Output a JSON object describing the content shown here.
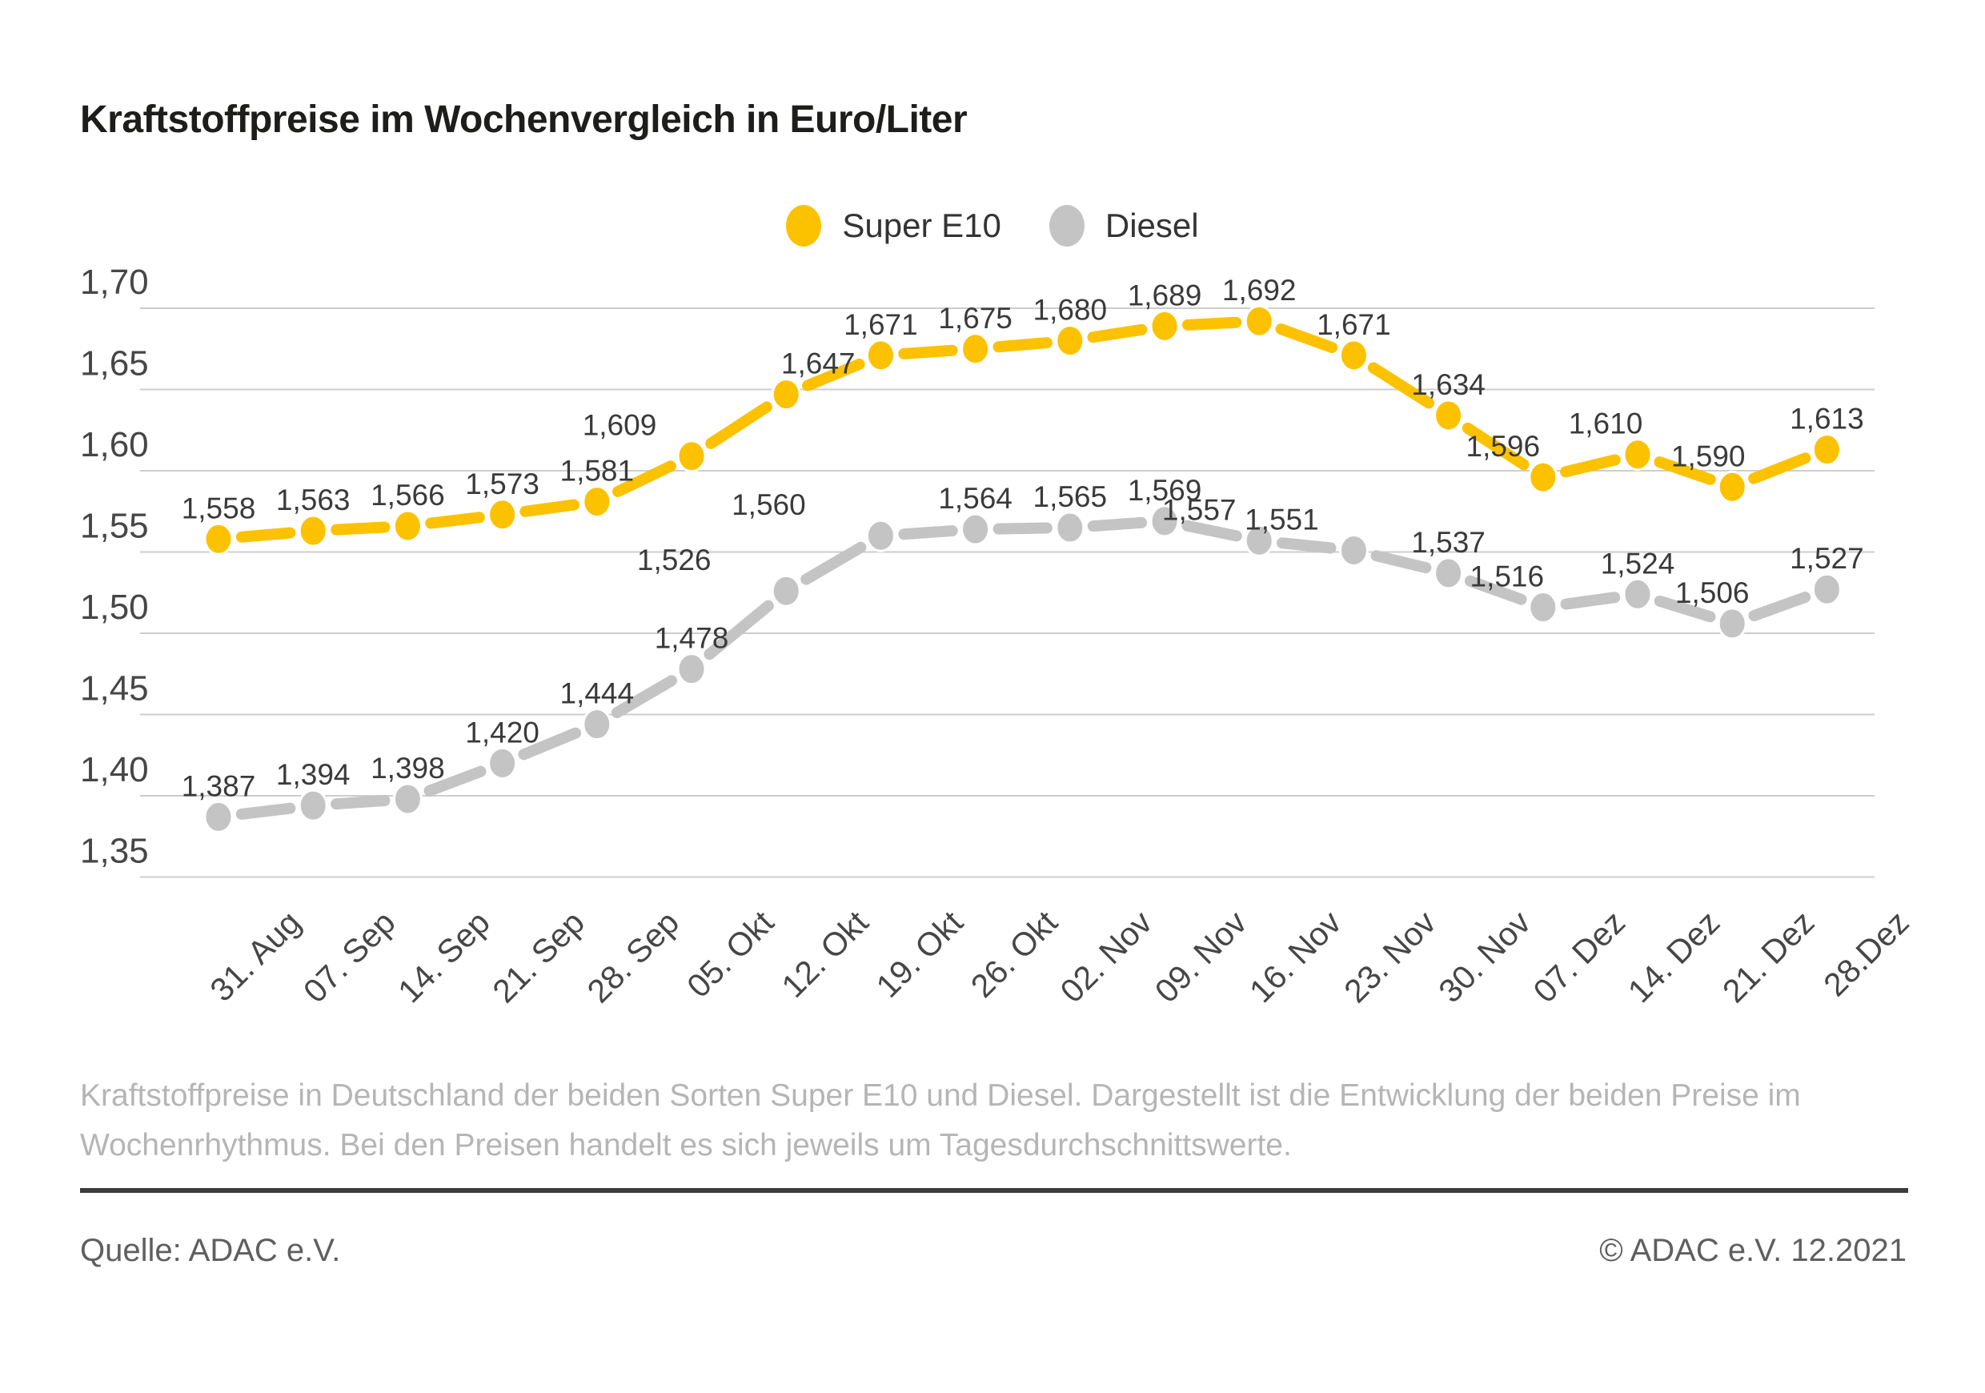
{
  "title": "Kraftstoffpreise im Wochenvergleich in Euro/Liter",
  "chart_data": {
    "type": "line",
    "title": "Kraftstoffpreise im Wochenvergleich in Euro/Liter",
    "xlabel": "",
    "ylabel": "",
    "ylim": [
      1.35,
      1.7
    ],
    "y_ticks": [
      1.7,
      1.65,
      1.6,
      1.55,
      1.5,
      1.45,
      1.4,
      1.35
    ],
    "grid": true,
    "legend_position": "top",
    "decimal_separator": ",",
    "categories": [
      "31. Aug",
      "07. Sep",
      "14. Sep",
      "21. Sep",
      "28. Sep",
      "05. Okt",
      "12. Okt",
      "19. Okt",
      "26. Okt",
      "02. Nov",
      "09. Nov",
      "16. Nov",
      "23. Nov",
      "30. Nov",
      "07. Dez",
      "14. Dez",
      "21. Dez",
      "28.Dez"
    ],
    "series": [
      {
        "name": "Super E10",
        "color": "#FCC200",
        "values": [
          1.558,
          1.563,
          1.566,
          1.573,
          1.581,
          1.609,
          1.647,
          1.671,
          1.675,
          1.68,
          1.689,
          1.692,
          1.671,
          1.634,
          1.596,
          1.61,
          1.59,
          1.613
        ]
      },
      {
        "name": "Diesel",
        "color": "#C4C4C4",
        "values": [
          1.387,
          1.394,
          1.398,
          1.42,
          1.444,
          1.478,
          1.526,
          1.56,
          1.564,
          1.565,
          1.569,
          1.557,
          1.551,
          1.537,
          1.516,
          1.524,
          1.506,
          1.527
        ]
      }
    ]
  },
  "footer": {
    "description_lines": [
      "Kraftstoffpreise in Deutschland der beiden Sorten Super E10 und Diesel. Dargestellt ist die Entwicklung der beiden Preise im",
      "Wochenrhythmus. Bei den Preisen handelt es sich jeweils um Tagesdurchschnittswerte."
    ],
    "source_left": "Quelle: ADAC e.V.",
    "source_right": "© ADAC e.V. 12.2021"
  }
}
